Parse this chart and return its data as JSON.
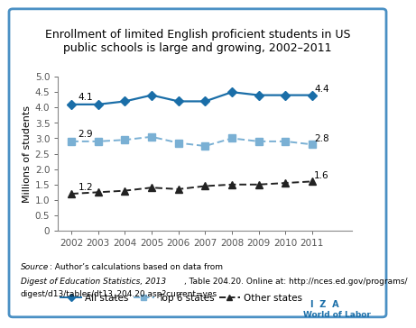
{
  "title": "Enrollment of limited English proficient students in US\npublic schools is large and growing, 2002–2011",
  "ylabel": "Millions of students",
  "years": [
    2002,
    2003,
    2004,
    2005,
    2006,
    2007,
    2008,
    2009,
    2010,
    2011
  ],
  "all_states": [
    4.1,
    4.1,
    4.2,
    4.4,
    4.2,
    4.2,
    4.5,
    4.4,
    4.4,
    4.4
  ],
  "top6_states": [
    2.9,
    2.9,
    2.95,
    3.05,
    2.85,
    2.75,
    3.0,
    2.9,
    2.9,
    2.8
  ],
  "other_states": [
    1.2,
    1.25,
    1.3,
    1.4,
    1.35,
    1.45,
    1.5,
    1.5,
    1.55,
    1.6
  ],
  "all_color": "#1a6ea8",
  "top6_color": "#7ab0d4",
  "other_color": "#222222",
  "ylim": [
    0,
    5.0
  ],
  "yticks": [
    0,
    0.5,
    1.0,
    1.5,
    2.0,
    2.5,
    3.0,
    3.5,
    4.0,
    4.5,
    5.0
  ],
  "ytick_labels": [
    "0",
    "0.5",
    "1.0",
    "1.5",
    "2.0",
    "2.5",
    "3.0",
    "3.5",
    "4.0",
    "4.5",
    "5.0"
  ],
  "label_2002_all": "4.1",
  "label_2002_top6": "2.9",
  "label_2002_other": "1.2",
  "label_2011_all": "4.4",
  "label_2011_top6": "2.8",
  "label_2011_other": "1.6",
  "source_normal": "Author’s calculations based on data from ",
  "source_italic1": "Digest of Education\nStatistics, 2013",
  "source_normal2": ", Table 204.20. Online at: http://nces.ed.gov/programs/\ndigest/d13/tables/dt13_204.20.asp?current=yes",
  "bg_color": "#ffffff",
  "border_color": "#4a90c4",
  "iza_color": "#1a6ea8"
}
